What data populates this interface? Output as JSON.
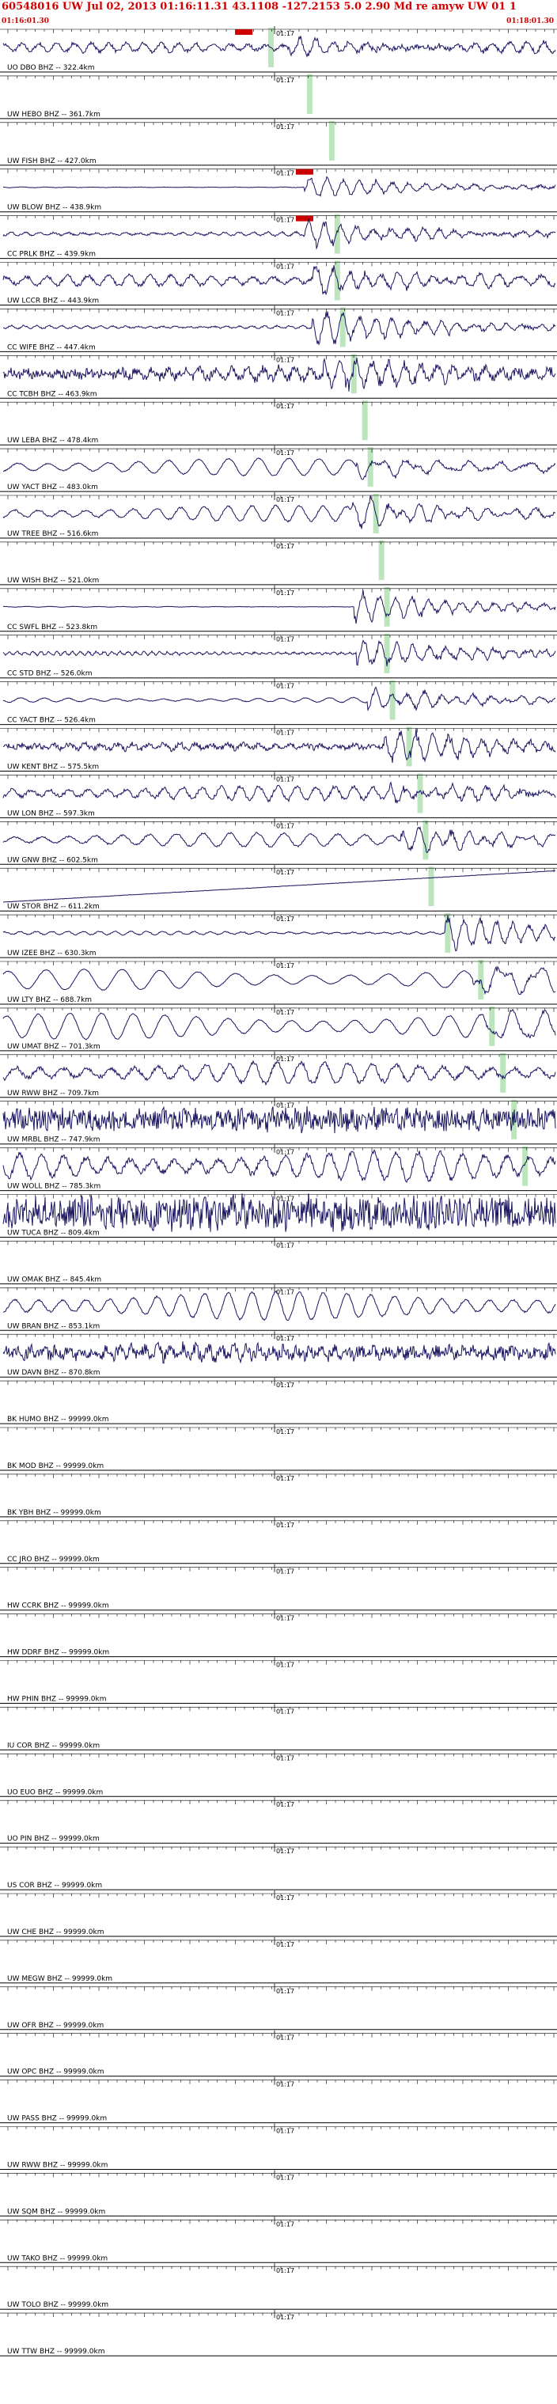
{
  "header": {
    "title": "60548016 UW Jul 02, 2013 01:16:11.31   43.1108 -127.2153  5.0 2.90 Md re amyw UW 01  1",
    "time_left": "01:16:01.30",
    "time_right": "01:18:01.30"
  },
  "colors": {
    "trace": "#1a1460",
    "header": "#d00000",
    "pick": "#cc0000",
    "window": "#bde5bd",
    "axis": "#000000"
  },
  "chart_data": {
    "type": "line",
    "title": "60548016 UW Jul 02, 2013 01:16:11.31   43.1108 -127.2153  5.0 2.90 Md re amyw UW 01  1",
    "x_range": [
      "01:16:01.30",
      "01:18:01.30"
    ],
    "tick_label": "01:17",
    "traces": [
      {
        "label": "UO DBO BHZ -- 322.4km",
        "amp": 0.25,
        "noise": 0.1,
        "period": 22,
        "arrival": 0.52,
        "post": 0.4,
        "window": 0.48,
        "pick": 0.42
      },
      {
        "label": "UW HEBO BHZ -- 361.7km",
        "amp": 0,
        "noise": 0,
        "period": 20,
        "arrival": null,
        "post": 0,
        "window": 0.55,
        "pick": null
      },
      {
        "label": "UW FISH BHZ -- 427.0km",
        "amp": 0,
        "noise": 0,
        "period": 20,
        "arrival": null,
        "post": 0,
        "window": 0.59,
        "pick": null
      },
      {
        "label": "UW BLOW BHZ -- 438.9km",
        "amp": 0.02,
        "noise": 0.01,
        "period": 30,
        "arrival": 0.545,
        "post": 0.55,
        "window": null,
        "pick": 0.53
      },
      {
        "label": "CC PRLK BHZ -- 439.9km",
        "amp": 0.12,
        "noise": 0.05,
        "period": 18,
        "arrival": 0.545,
        "post": 0.6,
        "window": 0.6,
        "pick": 0.53
      },
      {
        "label": "UW LCCR BHZ -- 443.9km",
        "amp": 0.3,
        "noise": 0.1,
        "period": 26,
        "arrival": 0.56,
        "post": 0.7,
        "window": 0.6,
        "pick": null
      },
      {
        "label": "CC WIFE BHZ -- 447.4km",
        "amp": 0.1,
        "noise": 0.04,
        "period": 16,
        "arrival": 0.56,
        "post": 0.9,
        "window": 0.61,
        "pick": null
      },
      {
        "label": "CC TCBH BHZ -- 463.9km",
        "amp": 0.3,
        "noise": 0.25,
        "period": 20,
        "arrival": 0.58,
        "post": 0.7,
        "window": 0.63,
        "pick": null
      },
      {
        "label": "UW LEBA BHZ -- 478.4km",
        "amp": 0,
        "noise": 0,
        "period": 20,
        "arrival": null,
        "post": 0,
        "window": 0.65,
        "pick": null
      },
      {
        "label": "UW YACT BHZ -- 483.0km",
        "amp": 0.5,
        "noise": 0.03,
        "period": 38,
        "arrival": 0.64,
        "post": 0.3,
        "window": 0.66,
        "pick": null
      },
      {
        "label": "UW TREE BHZ -- 516.6km",
        "amp": 0.45,
        "noise": 0.05,
        "period": 30,
        "arrival": 0.63,
        "post": 0.6,
        "window": 0.67,
        "pick": null
      },
      {
        "label": "UW WISH BHZ -- 521.0km",
        "amp": 0,
        "noise": 0,
        "period": 20,
        "arrival": null,
        "post": 0,
        "window": 0.68,
        "pick": null
      },
      {
        "label": "CC SWFL BHZ -- 523.8km",
        "amp": 0.02,
        "noise": 0.01,
        "period": 30,
        "arrival": 0.635,
        "post": 0.8,
        "window": 0.69,
        "pick": null
      },
      {
        "label": "CC STD BHZ -- 526.0km",
        "amp": 0.1,
        "noise": 0.05,
        "period": 10,
        "arrival": 0.64,
        "post": 0.7,
        "window": 0.69,
        "pick": null
      },
      {
        "label": "CC YACT BHZ -- 526.4km",
        "amp": 0.15,
        "noise": 0.02,
        "period": 30,
        "arrival": 0.66,
        "post": 0.5,
        "window": 0.7,
        "pick": null
      },
      {
        "label": "UW KENT BHZ -- 575.5km",
        "amp": 0.15,
        "noise": 0.15,
        "period": 20,
        "arrival": 0.69,
        "post": 0.8,
        "window": 0.73,
        "pick": null
      },
      {
        "label": "UW LON BHZ -- 597.3km",
        "amp": 0.4,
        "noise": 0.1,
        "period": 24,
        "arrival": 0.7,
        "post": 0.5,
        "window": 0.75,
        "pick": null
      },
      {
        "label": "UW GNW BHZ -- 602.5km",
        "amp": 0.4,
        "noise": 0.05,
        "period": 34,
        "arrival": 0.72,
        "post": 0.6,
        "window": 0.76,
        "pick": null
      },
      {
        "label": "UW STOR BHZ -- 611.2km",
        "amp": 0,
        "noise": 0.02,
        "period": 20,
        "arrival": null,
        "post": 0,
        "window": 0.77,
        "pick": null,
        "drift": 0.9
      },
      {
        "label": "UW IZEE BHZ -- 630.3km",
        "amp": 0.1,
        "noise": 0.03,
        "period": 20,
        "arrival": 0.8,
        "post": 0.8,
        "window": 0.8,
        "pick": null
      },
      {
        "label": "UW LTY BHZ -- 688.7km",
        "amp": 0.6,
        "noise": 0.02,
        "period": 48,
        "arrival": 0.85,
        "post": 0.4,
        "window": 0.86,
        "pick": null
      },
      {
        "label": "UW UMAT BHZ -- 701.3km",
        "amp": 0.75,
        "noise": 0.03,
        "period": 40,
        "arrival": 0.87,
        "post": 0.3,
        "window": 0.88,
        "pick": null
      },
      {
        "label": "UW RWW BHZ -- 709.7km",
        "amp": 0.6,
        "noise": 0.12,
        "period": 30,
        "arrival": null,
        "post": 0,
        "window": 0.9,
        "pick": null
      },
      {
        "label": "UW MRBL BHZ -- 747.9km",
        "amp": 0.2,
        "noise": 0.6,
        "period": 14,
        "arrival": null,
        "post": 0,
        "window": 0.92,
        "pick": null
      },
      {
        "label": "UW WOLL BHZ -- 785.3km",
        "amp": 0.8,
        "noise": 0.15,
        "period": 28,
        "arrival": null,
        "post": 0,
        "window": 0.94,
        "pick": null
      },
      {
        "label": "UW TUCA BHZ -- 809.4km",
        "amp": 0.3,
        "noise": 0.9,
        "period": 12,
        "arrival": null,
        "post": 0,
        "window": null,
        "pick": null
      },
      {
        "label": "UW OMAK BHZ -- 845.4km",
        "amp": 0,
        "noise": 0,
        "period": 20,
        "arrival": null,
        "post": 0,
        "window": null,
        "pick": null
      },
      {
        "label": "UW BRAN BHZ -- 853.1km",
        "amp": 0.8,
        "noise": 0.05,
        "period": 30,
        "arrival": null,
        "post": 0,
        "window": null,
        "pick": null
      },
      {
        "label": "UW DAVN BHZ -- 870.8km",
        "amp": 0.3,
        "noise": 0.35,
        "period": 16,
        "arrival": null,
        "post": 0,
        "window": null,
        "pick": null
      },
      {
        "label": "BK HUMO BHZ -- 99999.0km",
        "amp": 0,
        "noise": 0,
        "period": 20,
        "arrival": null,
        "post": 0,
        "window": null,
        "pick": null
      },
      {
        "label": "BK MOD BHZ -- 99999.0km",
        "amp": 0,
        "noise": 0,
        "period": 20,
        "arrival": null,
        "post": 0,
        "window": null,
        "pick": null
      },
      {
        "label": "BK YBH BHZ -- 99999.0km",
        "amp": 0,
        "noise": 0,
        "period": 20,
        "arrival": null,
        "post": 0,
        "window": null,
        "pick": null
      },
      {
        "label": "CC JRO BHZ -- 99999.0km",
        "amp": 0,
        "noise": 0,
        "period": 20,
        "arrival": null,
        "post": 0,
        "window": null,
        "pick": null
      },
      {
        "label": "HW CCRK BHZ -- 99999.0km",
        "amp": 0,
        "noise": 0,
        "period": 20,
        "arrival": null,
        "post": 0,
        "window": null,
        "pick": null
      },
      {
        "label": "HW DDRF BHZ -- 99999.0km",
        "amp": 0,
        "noise": 0,
        "period": 20,
        "arrival": null,
        "post": 0,
        "window": null,
        "pick": null
      },
      {
        "label": "HW PHIN BHZ -- 99999.0km",
        "amp": 0,
        "noise": 0,
        "period": 20,
        "arrival": null,
        "post": 0,
        "window": null,
        "pick": null
      },
      {
        "label": "IU COR BHZ -- 99999.0km",
        "amp": 0,
        "noise": 0,
        "period": 20,
        "arrival": null,
        "post": 0,
        "window": null,
        "pick": null
      },
      {
        "label": "UO EUO BHZ -- 99999.0km",
        "amp": 0,
        "noise": 0,
        "period": 20,
        "arrival": null,
        "post": 0,
        "window": null,
        "pick": null
      },
      {
        "label": "UO PIN BHZ -- 99999.0km",
        "amp": 0,
        "noise": 0,
        "period": 20,
        "arrival": null,
        "post": 0,
        "window": null,
        "pick": null
      },
      {
        "label": "US COR BHZ -- 99999.0km",
        "amp": 0,
        "noise": 0,
        "period": 20,
        "arrival": null,
        "post": 0,
        "window": null,
        "pick": null
      },
      {
        "label": "UW CHE BHZ -- 99999.0km",
        "amp": 0,
        "noise": 0,
        "period": 20,
        "arrival": null,
        "post": 0,
        "window": null,
        "pick": null
      },
      {
        "label": "UW MEGW BHZ -- 99999.0km",
        "amp": 0,
        "noise": 0,
        "period": 20,
        "arrival": null,
        "post": 0,
        "window": null,
        "pick": null
      },
      {
        "label": "UW OFR BHZ -- 99999.0km",
        "amp": 0,
        "noise": 0,
        "period": 20,
        "arrival": null,
        "post": 0,
        "window": null,
        "pick": null
      },
      {
        "label": "UW OPC BHZ -- 99999.0km",
        "amp": 0,
        "noise": 0,
        "period": 20,
        "arrival": null,
        "post": 0,
        "window": null,
        "pick": null
      },
      {
        "label": "UW PASS BHZ -- 99999.0km",
        "amp": 0,
        "noise": 0,
        "period": 20,
        "arrival": null,
        "post": 0,
        "window": null,
        "pick": null
      },
      {
        "label": "UW RWW BHZ -- 99999.0km",
        "amp": 0,
        "noise": 0,
        "period": 20,
        "arrival": null,
        "post": 0,
        "window": null,
        "pick": null
      },
      {
        "label": "UW SQM BHZ -- 99999.0km",
        "amp": 0,
        "noise": 0,
        "period": 20,
        "arrival": null,
        "post": 0,
        "window": null,
        "pick": null
      },
      {
        "label": "UW TAKO BHZ -- 99999.0km",
        "amp": 0,
        "noise": 0,
        "period": 20,
        "arrival": null,
        "post": 0,
        "window": null,
        "pick": null
      },
      {
        "label": "UW TOLO BHZ -- 99999.0km",
        "amp": 0,
        "noise": 0,
        "period": 20,
        "arrival": null,
        "post": 0,
        "window": null,
        "pick": null
      },
      {
        "label": "UW TTW BHZ -- 99999.0km",
        "amp": 0,
        "noise": 0,
        "period": 20,
        "arrival": null,
        "post": 0,
        "window": null,
        "pick": null
      }
    ]
  }
}
